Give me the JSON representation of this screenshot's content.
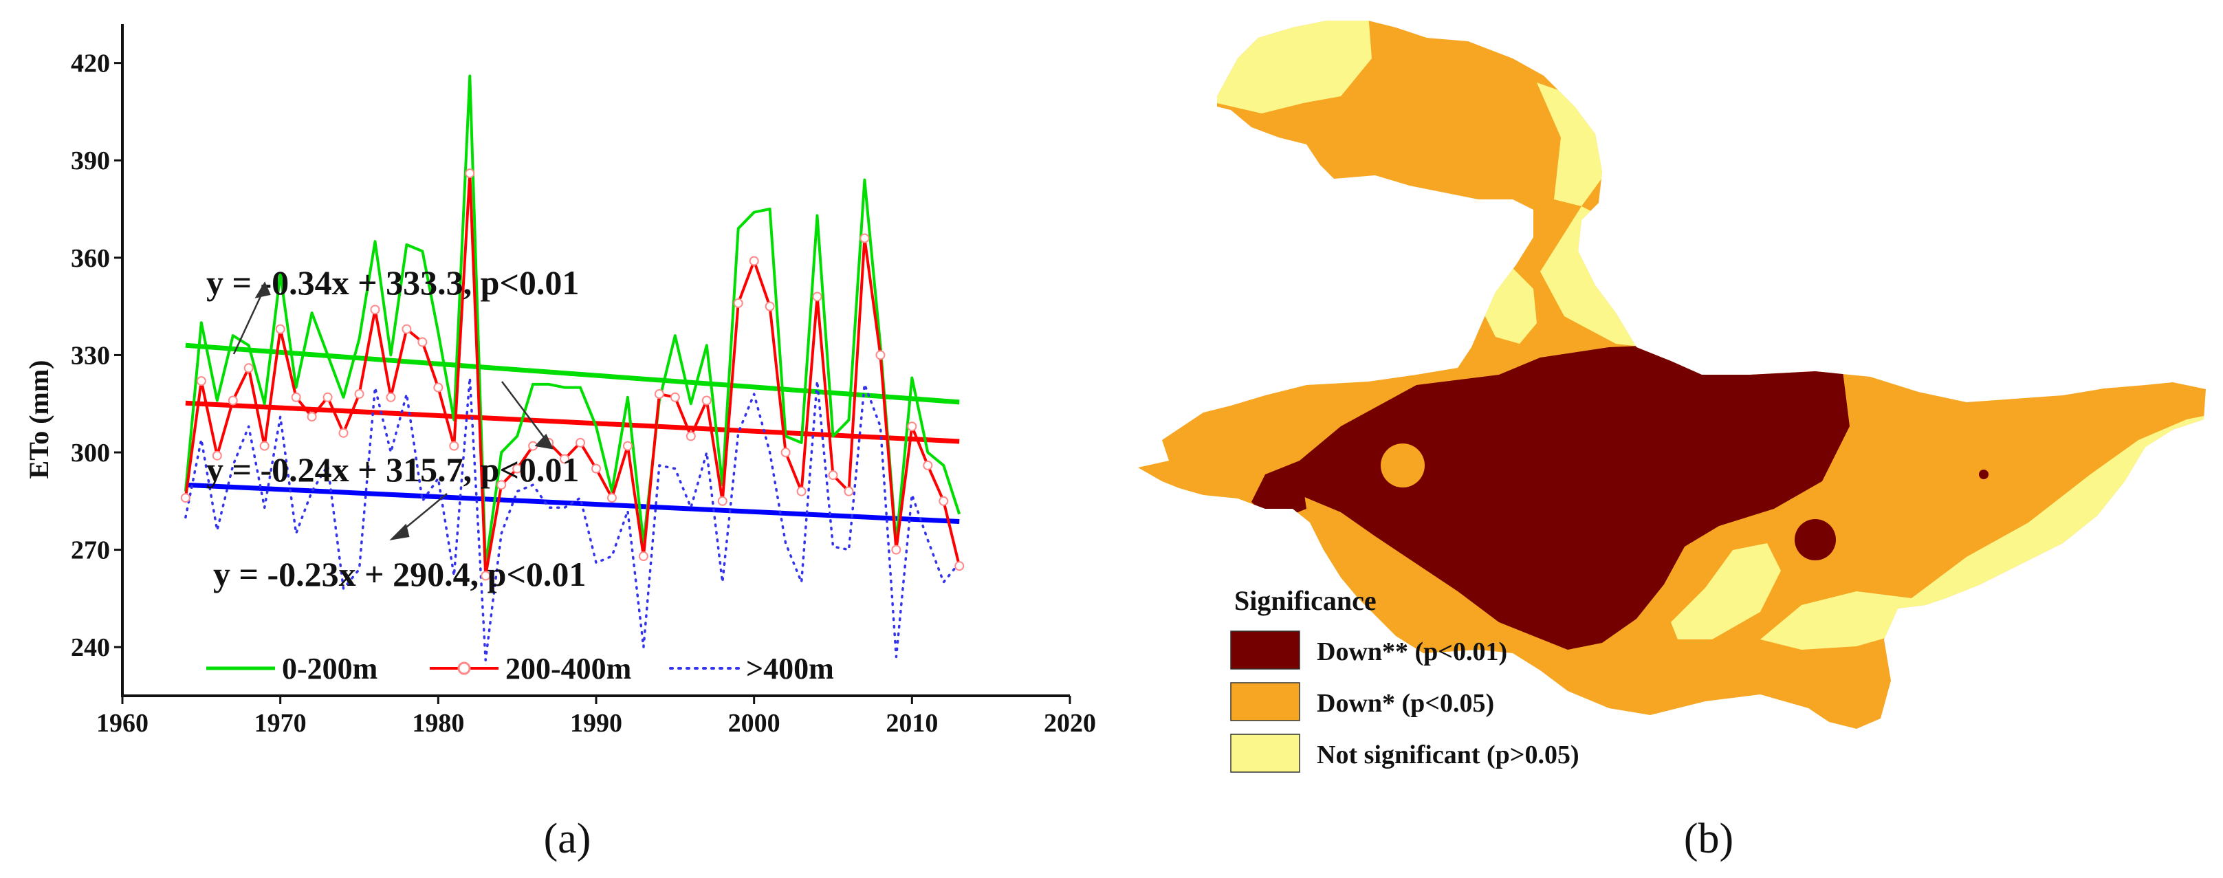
{
  "chart_data": [
    {
      "type": "line",
      "panel": "(a)",
      "ylabel": "ETo (mm)",
      "xlabel": "",
      "xlim": [
        1960,
        2020
      ],
      "ylim": [
        225,
        432
      ],
      "xticks": [
        "1960",
        "1970",
        "1980",
        "1990",
        "2000",
        "2010",
        "2020"
      ],
      "yticks": [
        "240",
        "270",
        "300",
        "330",
        "360",
        "390",
        "420"
      ],
      "x": [
        1964,
        1965,
        1966,
        1967,
        1968,
        1969,
        1970,
        1971,
        1972,
        1973,
        1974,
        1975,
        1976,
        1977,
        1978,
        1979,
        1980,
        1981,
        1982,
        1983,
        1984,
        1985,
        1986,
        1987,
        1988,
        1989,
        1990,
        1991,
        1992,
        1993,
        1994,
        1995,
        1996,
        1997,
        1998,
        1999,
        2000,
        2001,
        2002,
        2003,
        2004,
        2005,
        2006,
        2007,
        2008,
        2009,
        2010,
        2011,
        2012,
        2013
      ],
      "series": [
        {
          "name": "0-200m",
          "color": "#00dd00",
          "style": "solid",
          "values": [
            288,
            340,
            316,
            336,
            333,
            315,
            355,
            320,
            343,
            330,
            317,
            335,
            365,
            330,
            364,
            362,
            337,
            310,
            416,
            265,
            300,
            305,
            321,
            321,
            320,
            320,
            308,
            288,
            317,
            272,
            316,
            336,
            315,
            333,
            290,
            369,
            374,
            375,
            305,
            303,
            373,
            305,
            310,
            384,
            333,
            272,
            323,
            300,
            296,
            281
          ]
        },
        {
          "name": "200-400m",
          "color": "#ff0000",
          "style": "solid-circle",
          "values": [
            286,
            322,
            299,
            316,
            326,
            302,
            338,
            317,
            311,
            317,
            306,
            318,
            344,
            317,
            338,
            334,
            320,
            302,
            386,
            262,
            290,
            295,
            302,
            303,
            298,
            303,
            295,
            286,
            302,
            268,
            318,
            317,
            305,
            316,
            285,
            346,
            359,
            345,
            300,
            288,
            348,
            293,
            288,
            366,
            330,
            270,
            308,
            296,
            285,
            265
          ]
        },
        {
          "name": ">400m",
          "color": "#3333ee",
          "style": "dotted",
          "values": [
            280,
            304,
            276,
            296,
            308,
            283,
            311,
            275,
            288,
            296,
            258,
            264,
            320,
            300,
            318,
            285,
            292,
            262,
            323,
            236,
            275,
            288,
            290,
            283,
            283,
            286,
            266,
            268,
            282,
            240,
            296,
            295,
            283,
            300,
            260,
            306,
            318,
            300,
            272,
            260,
            322,
            271,
            270,
            321,
            308,
            237,
            287,
            273,
            260,
            266
          ]
        }
      ],
      "trendlines": [
        {
          "series": "0-200m",
          "color": "#00dd00",
          "x": [
            1964,
            2013
          ],
          "y": [
            333.0,
            315.5
          ],
          "equation": "y = -0.34x + 333.3, p<0.01"
        },
        {
          "series": "200-400m",
          "color": "#ff0000",
          "x": [
            1964,
            2013
          ],
          "y": [
            315.2,
            303.4
          ],
          "equation": "y = -0.24x + 315.7, p<0.01"
        },
        {
          "series": ">400m",
          "color": "#0000ff",
          "x": [
            1964,
            2013
          ],
          "y": [
            290.0,
            278.7
          ],
          "equation": "y = -0.23x + 290.4, p<0.01"
        }
      ],
      "legend": [
        "0-200m",
        "200-400m",
        ">400m"
      ],
      "legend_position": "bottom-left"
    }
  ],
  "map": {
    "panel": "(b)",
    "legend_title": "Significance",
    "legend": [
      {
        "label": "Down** (p<0.01)",
        "color": "#750000"
      },
      {
        "label": "Down* (p<0.05)",
        "color": "#f6a623"
      },
      {
        "label": "Not significant (p>0.05)",
        "color": "#fbf78a"
      }
    ]
  }
}
